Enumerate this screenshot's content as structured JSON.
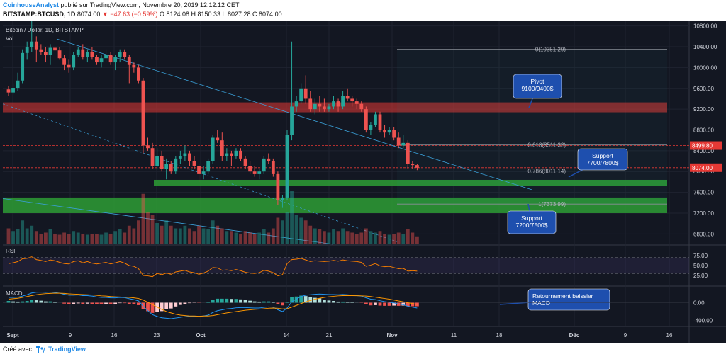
{
  "header": {
    "author": "CoinhouseAnalyst",
    "published": "publié sur TradingView.com, Novembre 20, 2019 12:12:12 CET",
    "symbol": "BITSTAMP:BTCUSD, 1D",
    "last": "8074.00",
    "change": "−47.63 (−0.59%)",
    "ohlc": "O:8124.08 H:8150.33 L:8027.28 C:8074.00"
  },
  "footer": {
    "created_with": "Créé avec",
    "brand": "TradingView"
  },
  "colors": {
    "up": "#26a69a",
    "down": "#ef5350",
    "background": "#131722",
    "grid": "#1f2330"
  },
  "chart_data": {
    "type": "candlestick",
    "title": "Bitcoin / Dollar, 1D, BITSTAMP",
    "volume_label": "Vol",
    "ylim": [
      6600,
      10850
    ],
    "yticks": [
      6800,
      7200,
      7600,
      8000,
      8400,
      8800,
      9200,
      9600,
      10000,
      10400,
      10800
    ],
    "xticks": [
      "Sept",
      "9",
      "16",
      "23",
      "Oct",
      "14",
      "21",
      "Nov",
      "11",
      "18",
      "Déc",
      "9",
      "16"
    ],
    "price_labels": [
      {
        "text": "8499.80",
        "value": 8499.8,
        "color": "#e53935"
      },
      {
        "text": "8074.00",
        "value": 8074.0,
        "color": "#e53935"
      }
    ],
    "fib": [
      {
        "text": "0(10351.29)",
        "value": 10351.29
      },
      {
        "text": "0.618(8511.32)",
        "value": 8511.32
      },
      {
        "text": "0.786(8011.14)",
        "value": 8011.14
      },
      {
        "text": "1(7373.99)",
        "value": 7373.99
      }
    ],
    "zones": [
      {
        "kind": "resistance",
        "from": 9140,
        "to": 9330
      },
      {
        "kind": "support",
        "from": 7730,
        "to": 7840
      },
      {
        "kind": "support",
        "from": 7200,
        "to": 7500
      }
    ],
    "annotations": [
      {
        "text": "Pivot\n9100/9400$"
      },
      {
        "text": "Support\n7700/7800$"
      },
      {
        "text": "Support\n7200/7500$"
      },
      {
        "text": "Retournement baissier\nMACD"
      }
    ],
    "candles": [
      [
        9580,
        9650,
        9450,
        9520
      ],
      [
        9520,
        9700,
        9480,
        9610
      ],
      [
        9610,
        9900,
        9550,
        9750
      ],
      [
        9750,
        10350,
        9700,
        10280
      ],
      [
        10280,
        10500,
        10150,
        10400
      ],
      [
        10400,
        10900,
        10300,
        10500
      ],
      [
        10500,
        10600,
        10100,
        10350
      ],
      [
        10350,
        10450,
        10250,
        10300
      ],
      [
        10300,
        10400,
        10100,
        10250
      ],
      [
        10250,
        10450,
        10050,
        10380
      ],
      [
        10380,
        10500,
        10300,
        10330
      ],
      [
        10330,
        10400,
        10150,
        10180
      ],
      [
        10180,
        10250,
        9950,
        10050
      ],
      [
        10050,
        10150,
        9900,
        10000
      ],
      [
        10000,
        10300,
        9950,
        10250
      ],
      [
        10250,
        10400,
        10200,
        10350
      ],
      [
        10350,
        10450,
        10150,
        10200
      ],
      [
        10200,
        10350,
        10100,
        10300
      ],
      [
        10300,
        10400,
        10150,
        10200
      ],
      [
        10200,
        10250,
        10050,
        10100
      ],
      [
        10100,
        10250,
        10000,
        10180
      ],
      [
        10180,
        10350,
        10100,
        10250
      ],
      [
        10250,
        10300,
        10050,
        10100
      ],
      [
        10100,
        10250,
        9950,
        10200
      ],
      [
        10200,
        10350,
        10100,
        10300
      ],
      [
        10300,
        10350,
        10150,
        10200
      ],
      [
        10200,
        10250,
        9700,
        10050
      ],
      [
        10050,
        10100,
        9900,
        10000
      ],
      [
        10000,
        10050,
        9700,
        9750
      ],
      [
        9750,
        9800,
        8350,
        8500
      ],
      [
        8500,
        8650,
        8400,
        8450
      ],
      [
        8450,
        8550,
        8050,
        8100
      ],
      [
        8100,
        8450,
        8050,
        8300
      ],
      [
        8300,
        8400,
        8000,
        8050
      ],
      [
        8050,
        8250,
        7850,
        8150
      ],
      [
        8150,
        8200,
        7950,
        8000
      ],
      [
        8000,
        8300,
        7950,
        8250
      ],
      [
        8250,
        8400,
        8150,
        8300
      ],
      [
        8300,
        8500,
        8200,
        8350
      ],
      [
        8350,
        8400,
        8100,
        8200
      ],
      [
        8200,
        8300,
        8050,
        8100
      ],
      [
        8100,
        8150,
        7800,
        7950
      ],
      [
        7950,
        8100,
        7850,
        8000
      ],
      [
        8000,
        8250,
        7950,
        8200
      ],
      [
        8200,
        8700,
        8150,
        8650
      ],
      [
        8650,
        8800,
        8550,
        8600
      ],
      [
        8600,
        8750,
        8200,
        8300
      ],
      [
        8300,
        8450,
        8200,
        8350
      ],
      [
        8350,
        8400,
        8100,
        8300
      ],
      [
        8300,
        8450,
        8250,
        8400
      ],
      [
        8400,
        8450,
        8200,
        8250
      ],
      [
        8250,
        8300,
        8050,
        8100
      ],
      [
        8100,
        8200,
        7950,
        8000
      ],
      [
        8000,
        8100,
        7900,
        7950
      ],
      [
        7950,
        8050,
        7850,
        8000
      ],
      [
        8000,
        8300,
        7950,
        8250
      ],
      [
        8250,
        8350,
        8150,
        8200
      ],
      [
        8200,
        8250,
        7900,
        7950
      ],
      [
        7950,
        8000,
        7350,
        7450
      ],
      [
        7450,
        7550,
        7300,
        7500
      ],
      [
        7500,
        8800,
        7450,
        8700
      ],
      [
        8700,
        10500,
        8600,
        9250
      ],
      [
        9250,
        9450,
        9150,
        9350
      ],
      [
        9350,
        9700,
        9300,
        9600
      ],
      [
        9600,
        9850,
        9300,
        9400
      ],
      [
        9400,
        9550,
        9150,
        9200
      ],
      [
        9200,
        9400,
        9100,
        9300
      ],
      [
        9300,
        9450,
        9150,
        9250
      ],
      [
        9250,
        9400,
        9150,
        9200
      ],
      [
        9200,
        9300,
        9150,
        9250
      ],
      [
        9250,
        9450,
        9200,
        9350
      ],
      [
        9350,
        9400,
        9150,
        9250
      ],
      [
        9250,
        9550,
        9200,
        9450
      ],
      [
        9450,
        9600,
        9350,
        9400
      ],
      [
        9400,
        9450,
        9250,
        9350
      ],
      [
        9350,
        9400,
        9200,
        9300
      ],
      [
        9300,
        9350,
        9150,
        9200
      ],
      [
        9200,
        9250,
        8750,
        8800
      ],
      [
        8800,
        8950,
        8700,
        8900
      ],
      [
        8900,
        9150,
        8850,
        9100
      ],
      [
        9100,
        9150,
        8750,
        8800
      ],
      [
        8800,
        8900,
        8650,
        8750
      ],
      [
        8750,
        8850,
        8700,
        8800
      ],
      [
        8800,
        8850,
        8600,
        8650
      ],
      [
        8650,
        8750,
        8450,
        8500
      ],
      [
        8500,
        8700,
        8450,
        8550
      ],
      [
        8550,
        8600,
        8050,
        8150
      ],
      [
        8150,
        8200,
        8050,
        8124
      ],
      [
        8124,
        8150,
        8027,
        8074
      ]
    ],
    "volume": [
      0.3,
      0.25,
      0.28,
      0.45,
      0.3,
      0.35,
      0.25,
      0.2,
      0.22,
      0.28,
      0.2,
      0.18,
      0.22,
      0.2,
      0.25,
      0.22,
      0.2,
      0.18,
      0.2,
      0.2,
      0.18,
      0.22,
      0.2,
      0.25,
      0.28,
      0.22,
      0.35,
      0.3,
      0.45,
      0.95,
      0.6,
      0.55,
      0.4,
      0.35,
      0.45,
      0.35,
      0.3,
      0.3,
      0.35,
      0.3,
      0.25,
      0.35,
      0.3,
      0.28,
      0.45,
      0.35,
      0.3,
      0.25,
      0.25,
      0.22,
      0.2,
      0.25,
      0.22,
      0.2,
      0.22,
      0.28,
      0.22,
      0.3,
      0.5,
      0.45,
      0.6,
      1.0,
      0.55,
      0.5,
      0.45,
      0.35,
      0.3,
      0.28,
      0.25,
      0.22,
      0.28,
      0.25,
      0.3,
      0.25,
      0.22,
      0.2,
      0.22,
      0.3,
      0.25,
      0.22,
      0.25,
      0.2,
      0.18,
      0.2,
      0.22,
      0.2,
      0.28,
      0.22,
      0.15
    ],
    "rsi": {
      "label": "RSI",
      "yticks": [
        25,
        50,
        75
      ],
      "bands": [
        30,
        70
      ],
      "values": [
        55,
        57,
        60,
        67,
        68,
        72,
        65,
        63,
        60,
        64,
        62,
        58,
        55,
        54,
        60,
        62,
        57,
        60,
        56,
        54,
        56,
        58,
        54,
        57,
        60,
        56,
        50,
        48,
        42,
        25,
        24,
        22,
        30,
        27,
        31,
        28,
        34,
        36,
        38,
        34,
        32,
        28,
        31,
        36,
        45,
        44,
        38,
        39,
        37,
        40,
        37,
        33,
        31,
        30,
        32,
        38,
        36,
        32,
        24,
        27,
        55,
        65,
        66,
        68,
        64,
        60,
        62,
        61,
        60,
        61,
        63,
        61,
        64,
        62,
        61,
        60,
        58,
        48,
        51,
        55,
        49,
        47,
        48,
        45,
        42,
        43,
        36,
        37,
        36
      ]
    },
    "macd": {
      "label": "MACD",
      "yticks": [
        0,
        -400
      ],
      "macd": [
        120,
        120,
        125,
        150,
        180,
        220,
        235,
        240,
        235,
        240,
        230,
        215,
        190,
        170,
        170,
        175,
        160,
        160,
        150,
        130,
        120,
        120,
        110,
        110,
        120,
        115,
        90,
        70,
        40,
        -80,
        -180,
        -270,
        -310,
        -340,
        -350,
        -360,
        -345,
        -330,
        -315,
        -310,
        -305,
        -310,
        -300,
        -280,
        -220,
        -180,
        -160,
        -140,
        -130,
        -115,
        -110,
        -110,
        -115,
        -120,
        -120,
        -105,
        -95,
        -100,
        -160,
        -200,
        -120,
        20,
        80,
        140,
        170,
        180,
        190,
        195,
        190,
        185,
        185,
        180,
        185,
        180,
        170,
        160,
        150,
        110,
        80,
        70,
        45,
        25,
        10,
        -5,
        -30,
        -45,
        -80,
        -100,
        -120
      ],
      "signal": [
        80,
        90,
        100,
        120,
        140,
        160,
        180,
        195,
        205,
        210,
        215,
        215,
        210,
        200,
        195,
        190,
        185,
        180,
        175,
        165,
        155,
        150,
        140,
        135,
        130,
        125,
        120,
        110,
        95,
        60,
        10,
        -40,
        -100,
        -150,
        -200,
        -230,
        -260,
        -280,
        -290,
        -300,
        -300,
        -305,
        -300,
        -300,
        -290,
        -270,
        -250,
        -230,
        -215,
        -200,
        -185,
        -170,
        -160,
        -150,
        -145,
        -135,
        -125,
        -120,
        -125,
        -140,
        -135,
        -100,
        -60,
        -20,
        20,
        50,
        80,
        100,
        120,
        135,
        145,
        155,
        160,
        162,
        160,
        158,
        155,
        150,
        140,
        125,
        110,
        95,
        80,
        60,
        40,
        20,
        0,
        -20,
        -40
      ],
      "histogram": [
        40,
        30,
        25,
        30,
        40,
        60,
        55,
        45,
        30,
        30,
        15,
        0,
        -20,
        -30,
        -25,
        -15,
        -25,
        -20,
        -25,
        -35,
        -35,
        -30,
        -30,
        -25,
        -10,
        -10,
        -30,
        -40,
        -55,
        -140,
        -190,
        -230,
        -210,
        -190,
        -150,
        -130,
        -85,
        -50,
        -25,
        -10,
        -5,
        -5,
        0,
        20,
        70,
        90,
        90,
        90,
        85,
        85,
        75,
        60,
        45,
        30,
        25,
        30,
        30,
        20,
        -35,
        -60,
        15,
        120,
        140,
        160,
        150,
        130,
        110,
        95,
        70,
        50,
        40,
        25,
        25,
        18,
        10,
        2,
        -5,
        -40,
        -60,
        -55,
        -65,
        -70,
        -70,
        -65,
        -70,
        -65,
        -80,
        -80,
        -80
      ]
    }
  }
}
